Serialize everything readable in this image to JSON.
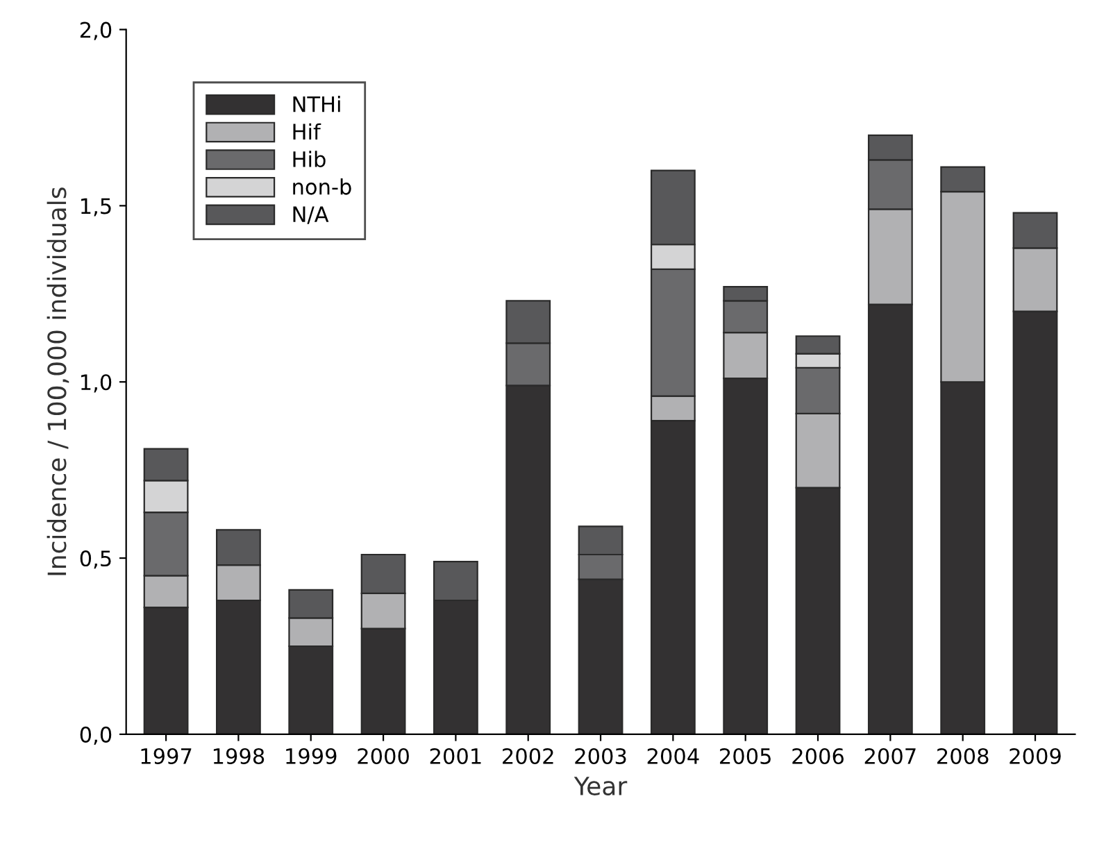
{
  "chart_data": {
    "type": "bar",
    "stacked": true,
    "xlabel": "Year",
    "ylabel": "Incidence / 100,000 individuals",
    "categories": [
      "1997",
      "1998",
      "1999",
      "2000",
      "2001",
      "2002",
      "2003",
      "2004",
      "2005",
      "2006",
      "2007",
      "2008",
      "2009"
    ],
    "series": [
      {
        "name": "NTHi",
        "color": "#333132",
        "values": [
          0.36,
          0.38,
          0.25,
          0.3,
          0.38,
          0.99,
          0.44,
          0.89,
          1.01,
          0.7,
          1.22,
          1.0,
          1.2
        ]
      },
      {
        "name": "Hif",
        "color": "#b1b1b3",
        "values": [
          0.09,
          0.1,
          0.08,
          0.1,
          null,
          null,
          null,
          0.07,
          0.13,
          0.21,
          0.27,
          0.54,
          0.18
        ]
      },
      {
        "name": "Hib",
        "color": "#6a6a6c",
        "values": [
          0.18,
          null,
          null,
          null,
          null,
          0.12,
          0.07,
          0.36,
          0.09,
          0.13,
          0.14,
          null,
          null
        ]
      },
      {
        "name": "non-b",
        "color": "#d4d4d5",
        "values": [
          0.09,
          null,
          null,
          null,
          null,
          null,
          null,
          0.07,
          null,
          0.04,
          null,
          null,
          null
        ]
      },
      {
        "name": "N/A",
        "color": "#58585a",
        "values": [
          0.09,
          0.1,
          0.08,
          0.11,
          0.11,
          0.12,
          0.08,
          0.21,
          0.04,
          0.05,
          0.07,
          0.07,
          0.1
        ]
      }
    ],
    "ylim": [
      0,
      2.0
    ],
    "yticks": [
      {
        "value": 0,
        "label": "0,0"
      },
      {
        "value": 0.5,
        "label": "0,5"
      },
      {
        "value": 1.0,
        "label": "1,0"
      },
      {
        "value": 1.5,
        "label": "1,5"
      },
      {
        "value": 2.0,
        "label": "2,0"
      }
    ],
    "legend": "top left",
    "grid": false
  }
}
